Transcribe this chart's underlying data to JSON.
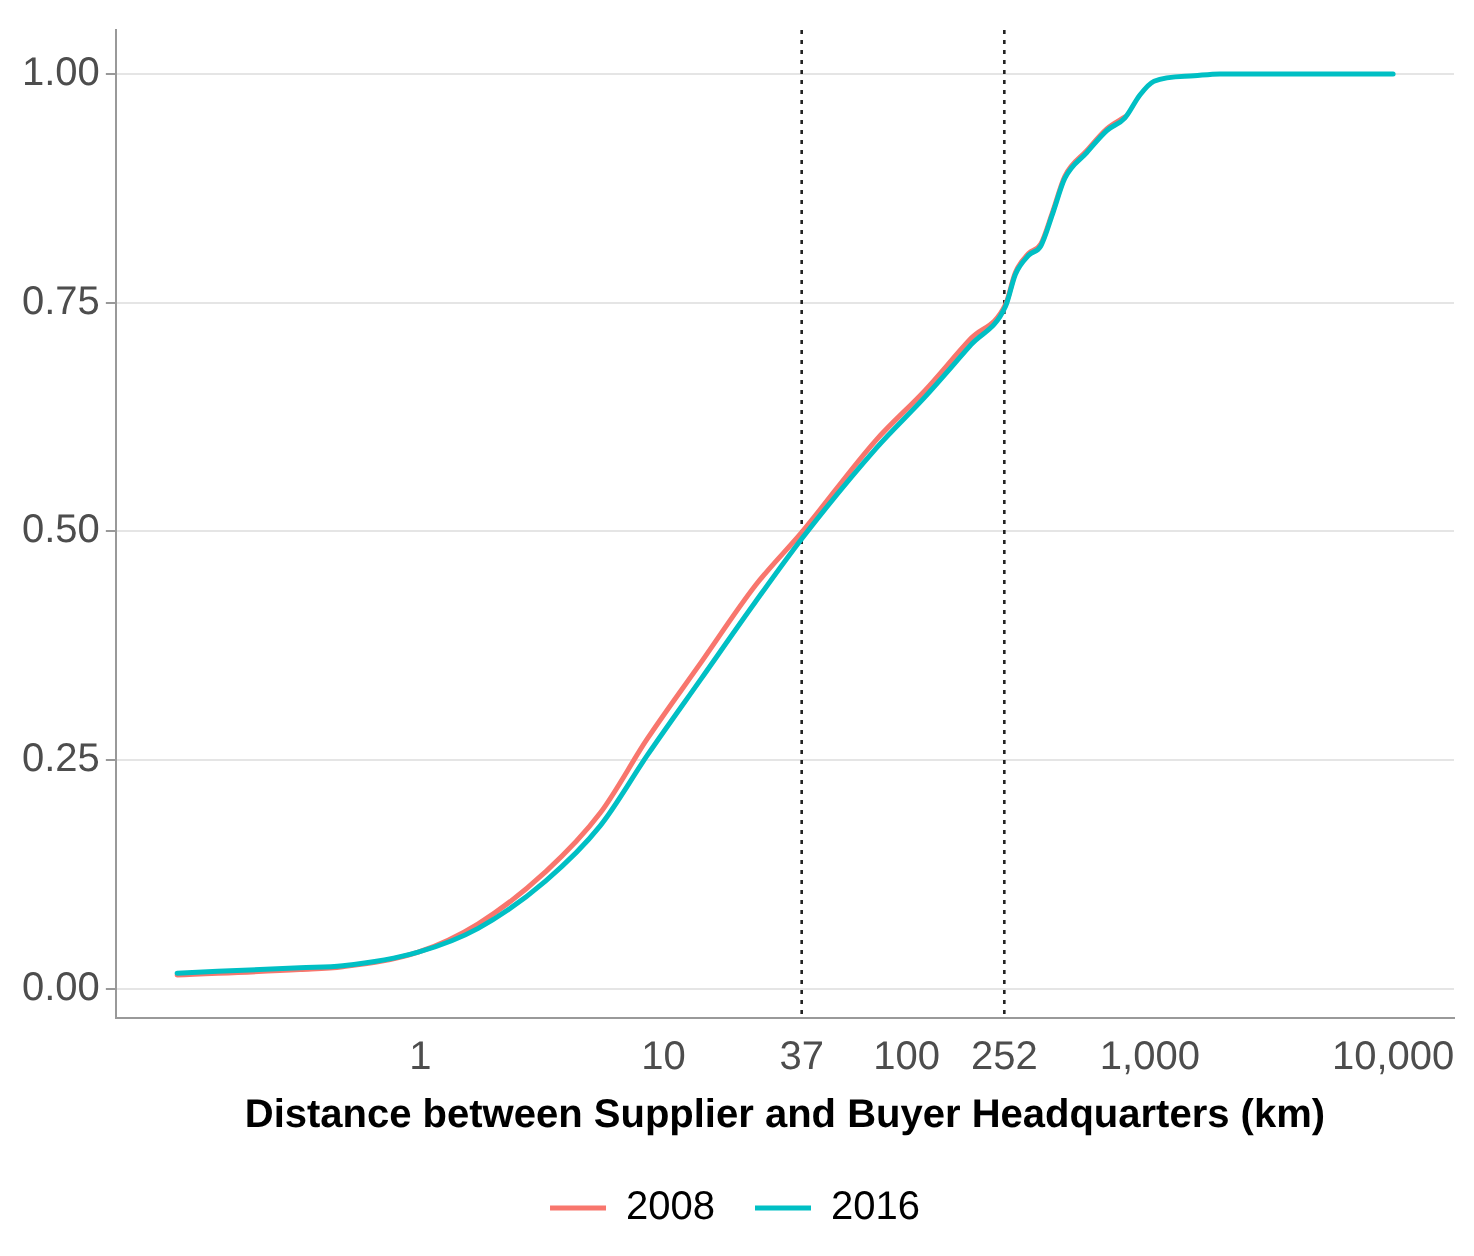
{
  "chart_data": {
    "type": "line",
    "xlabel": "Distance between Supplier and Buyer Headquarters (km)",
    "x": [
      0.1,
      0.32,
      0.48,
      0.98,
      1.73,
      3.28,
      5.49,
      8.57,
      14.3,
      23.9,
      37.3,
      75,
      119,
      184,
      255,
      280,
      318,
      356,
      398,
      447,
      550,
      665,
      790,
      910,
      1040,
      1520,
      1940,
      10000
    ],
    "series": [
      {
        "name": "2008",
        "color": "#f8766d",
        "values": [
          0.015,
          0.021,
          0.024,
          0.04,
          0.071,
          0.128,
          0.192,
          0.273,
          0.357,
          0.441,
          0.5,
          0.6,
          0.654,
          0.711,
          0.748,
          0.783,
          0.804,
          0.814,
          0.849,
          0.888,
          0.916,
          0.94,
          0.953,
          null,
          null,
          null,
          null,
          null
        ]
      },
      {
        "name": "2016",
        "color": "#00bfc4",
        "values": [
          0.017,
          0.023,
          0.025,
          0.04,
          0.066,
          0.118,
          0.178,
          0.255,
          0.339,
          0.423,
          0.493,
          0.591,
          0.647,
          0.704,
          0.746,
          0.781,
          0.802,
          0.812,
          0.847,
          0.886,
          0.914,
          0.938,
          0.952,
          0.977,
          0.992,
          0.998,
          1.0,
          1.0
        ]
      }
    ],
    "log": "x",
    "xlim": [
      0.056,
      17800
    ],
    "xticks": [
      1,
      10,
      37,
      100,
      252,
      {
        "value": 1000,
        "label": "1,000"
      },
      {
        "value": 10000,
        "label": "10,000"
      }
    ],
    "ylim": [
      -0.032,
      1.048
    ],
    "yticks": [
      {
        "value": 0,
        "label": "0.00"
      },
      {
        "value": 0.25,
        "label": "0.25"
      },
      {
        "value": 0.5,
        "label": "0.50"
      },
      {
        "value": 0.75,
        "label": "0.75"
      },
      {
        "value": 1,
        "label": "1.00"
      }
    ],
    "ref_lines": [
      {
        "axis": "x",
        "value": 37,
        "color": "#222222",
        "line_style": "dotted"
      },
      {
        "axis": "x",
        "value": 252,
        "color": "#222222",
        "line_style": "dotted"
      }
    ],
    "grid": "y",
    "legend": "bottom",
    "marker": "none",
    "line_style": "solid"
  }
}
